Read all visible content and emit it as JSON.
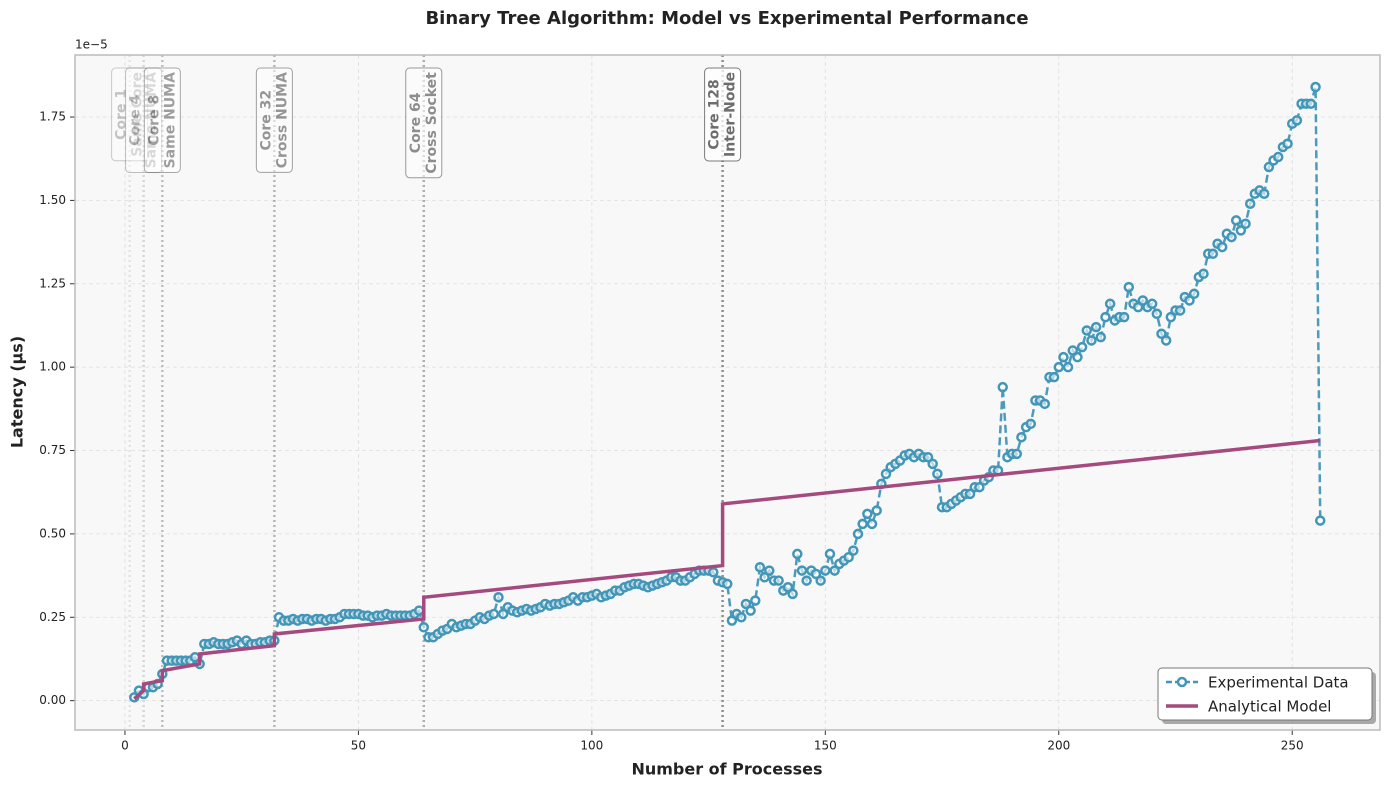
{
  "chart_data": {
    "type": "line",
    "title": "Binary Tree Algorithm: Model vs Experimental Performance",
    "x_label": "Number of Processes",
    "y_label": "Latency (μs)",
    "y_offset_label": "1e−5",
    "xlim": [
      -10.7,
      268.8
    ],
    "ylim": [
      -0.088,
      1.936
    ],
    "xticks": [
      0,
      50,
      100,
      150,
      200,
      250
    ],
    "yticks": [
      {
        "value": 0,
        "label": "0.00"
      },
      {
        "value": 0.25,
        "label": "0.25"
      },
      {
        "value": 0.5,
        "label": "0.50"
      },
      {
        "value": 0.75,
        "label": "0.75"
      },
      {
        "value": 1,
        "label": "1.00"
      },
      {
        "value": 1.25,
        "label": "1.25"
      },
      {
        "value": 1.5,
        "label": "1.50"
      },
      {
        "value": 1.75,
        "label": "1.75"
      }
    ],
    "grid": true,
    "legend": "lower right",
    "series": [
      {
        "name": "Experimental Data",
        "color": "#4396b7",
        "marker": "circle",
        "dashed": true,
        "x": [
          2,
          3,
          4,
          5,
          6,
          7,
          8,
          9,
          10,
          11,
          12,
          13,
          14,
          15,
          16,
          17,
          18,
          19,
          20,
          21,
          22,
          23,
          24,
          25,
          26,
          27,
          28,
          29,
          30,
          31,
          32,
          33,
          34,
          35,
          36,
          37,
          38,
          39,
          40,
          41,
          42,
          43,
          44,
          45,
          46,
          47,
          48,
          49,
          50,
          51,
          52,
          53,
          54,
          55,
          56,
          57,
          58,
          59,
          60,
          61,
          62,
          63,
          64,
          65,
          66,
          67,
          68,
          69,
          70,
          71,
          72,
          73,
          74,
          75,
          76,
          77,
          78,
          79,
          80,
          81,
          82,
          83,
          84,
          85,
          86,
          87,
          88,
          89,
          90,
          91,
          92,
          93,
          94,
          95,
          96,
          97,
          98,
          99,
          100,
          101,
          102,
          103,
          104,
          105,
          106,
          107,
          108,
          109,
          110,
          111,
          112,
          113,
          114,
          115,
          116,
          117,
          118,
          119,
          120,
          121,
          122,
          123,
          124,
          125,
          126,
          127,
          128,
          129,
          130,
          131,
          132,
          133,
          134,
          135,
          136,
          137,
          138,
          139,
          140,
          141,
          142,
          143,
          144,
          145,
          146,
          147,
          148,
          149,
          150,
          151,
          152,
          153,
          154,
          155,
          156,
          157,
          158,
          159,
          160,
          161,
          162,
          163,
          164,
          165,
          166,
          167,
          168,
          169,
          170,
          171,
          172,
          173,
          174,
          175,
          176,
          177,
          178,
          179,
          180,
          181,
          182,
          183,
          184,
          185,
          186,
          187,
          188,
          189,
          190,
          191,
          192,
          193,
          194,
          195,
          196,
          197,
          198,
          199,
          200,
          201,
          202,
          203,
          204,
          205,
          206,
          207,
          208,
          209,
          210,
          211,
          212,
          213,
          214,
          215,
          216,
          217,
          218,
          219,
          220,
          221,
          222,
          223,
          224,
          225,
          226,
          227,
          228,
          229,
          230,
          231,
          232,
          233,
          234,
          235,
          236,
          237,
          238,
          239,
          240,
          241,
          242,
          243,
          244,
          245,
          246,
          247,
          248,
          249,
          250,
          251,
          252,
          253,
          254,
          255,
          256
        ],
        "values": [
          0.01,
          0.03,
          0.02,
          0.04,
          0.04,
          0.05,
          0.08,
          0.12,
          0.12,
          0.12,
          0.12,
          0.12,
          0.12,
          0.13,
          0.11,
          0.17,
          0.17,
          0.175,
          0.17,
          0.17,
          0.17,
          0.175,
          0.18,
          0.17,
          0.18,
          0.17,
          0.17,
          0.175,
          0.175,
          0.18,
          0.18,
          0.25,
          0.24,
          0.24,
          0.245,
          0.24,
          0.245,
          0.245,
          0.24,
          0.245,
          0.245,
          0.24,
          0.245,
          0.245,
          0.25,
          0.26,
          0.26,
          0.26,
          0.26,
          0.255,
          0.255,
          0.25,
          0.255,
          0.255,
          0.26,
          0.255,
          0.255,
          0.255,
          0.255,
          0.255,
          0.26,
          0.27,
          0.22,
          0.19,
          0.19,
          0.2,
          0.21,
          0.215,
          0.23,
          0.22,
          0.225,
          0.23,
          0.23,
          0.24,
          0.25,
          0.245,
          0.255,
          0.26,
          0.31,
          0.26,
          0.28,
          0.27,
          0.265,
          0.27,
          0.275,
          0.27,
          0.275,
          0.28,
          0.29,
          0.285,
          0.29,
          0.29,
          0.295,
          0.3,
          0.31,
          0.3,
          0.31,
          0.31,
          0.315,
          0.32,
          0.31,
          0.315,
          0.32,
          0.33,
          0.33,
          0.34,
          0.345,
          0.35,
          0.35,
          0.345,
          0.34,
          0.345,
          0.35,
          0.355,
          0.36,
          0.37,
          0.37,
          0.36,
          0.36,
          0.37,
          0.38,
          0.39,
          0.39,
          0.39,
          0.385,
          0.36,
          0.355,
          0.35,
          0.24,
          0.26,
          0.25,
          0.29,
          0.27,
          0.3,
          0.4,
          0.37,
          0.39,
          0.36,
          0.36,
          0.33,
          0.34,
          0.32,
          0.44,
          0.39,
          0.36,
          0.39,
          0.38,
          0.36,
          0.39,
          0.44,
          0.39,
          0.41,
          0.42,
          0.43,
          0.45,
          0.5,
          0.53,
          0.56,
          0.53,
          0.57,
          0.65,
          0.68,
          0.7,
          0.71,
          0.72,
          0.735,
          0.74,
          0.73,
          0.74,
          0.73,
          0.73,
          0.71,
          0.68,
          0.58,
          0.58,
          0.59,
          0.6,
          0.61,
          0.62,
          0.62,
          0.64,
          0.64,
          0.66,
          0.67,
          0.69,
          0.69,
          0.94,
          0.73,
          0.74,
          0.74,
          0.79,
          0.82,
          0.83,
          0.9,
          0.9,
          0.89,
          0.97,
          0.97,
          1.0,
          1.03,
          1.0,
          1.05,
          1.03,
          1.06,
          1.11,
          1.08,
          1.12,
          1.09,
          1.15,
          1.19,
          1.14,
          1.15,
          1.15,
          1.24,
          1.19,
          1.18,
          1.2,
          1.18,
          1.19,
          1.16,
          1.1,
          1.08,
          1.15,
          1.17,
          1.17,
          1.21,
          1.2,
          1.22,
          1.27,
          1.28,
          1.34,
          1.34,
          1.37,
          1.36,
          1.4,
          1.39,
          1.44,
          1.41,
          1.43,
          1.49,
          1.52,
          1.53,
          1.52,
          1.6,
          1.62,
          1.63,
          1.66,
          1.67,
          1.73,
          1.74,
          1.79,
          1.79,
          1.79,
          1.84,
          0.54
        ]
      },
      {
        "name": "Analytical Model",
        "color": "#a44a7f",
        "x": [
          2,
          4,
          4,
          8,
          8,
          16,
          16,
          32,
          32,
          64,
          64,
          128,
          128,
          256
        ],
        "values": [
          0.005,
          0.03,
          0.05,
          0.06,
          0.09,
          0.11,
          0.14,
          0.165,
          0.2,
          0.245,
          0.31,
          0.405,
          0.59,
          0.78
        ]
      }
    ],
    "annotations": [
      {
        "x": 1,
        "lines": [
          "Core 1",
          "Same Core"
        ]
      },
      {
        "x": 4,
        "lines": [
          "Core 4",
          "Same NUMA"
        ]
      },
      {
        "x": 8,
        "lines": [
          "Core 8",
          "Same NUMA"
        ]
      },
      {
        "x": 32,
        "lines": [
          "Core 32",
          "Cross NUMA"
        ]
      },
      {
        "x": 64,
        "lines": [
          "Core 64",
          "Cross Socket"
        ]
      },
      {
        "x": 128,
        "lines": [
          "Core 128",
          "Inter-Node"
        ]
      }
    ]
  }
}
